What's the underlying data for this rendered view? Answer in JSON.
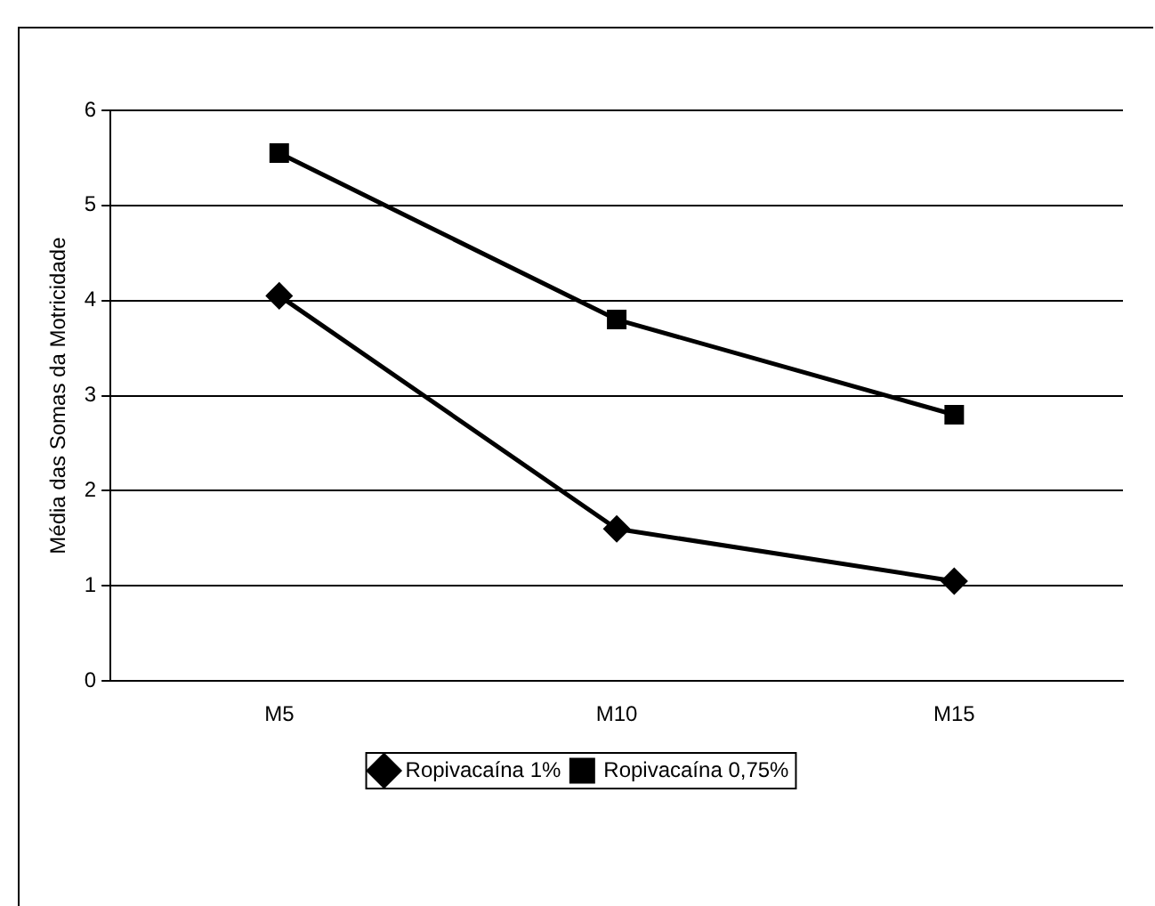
{
  "chart_data": {
    "type": "line",
    "ylabel": "Média das Somas da Motricidade",
    "categories": [
      "M5",
      "M10",
      "M15"
    ],
    "series": [
      {
        "name": "Ropivacaína 1%",
        "color": "#000000",
        "marker": "diamond",
        "values": [
          4.05,
          1.6,
          1.05
        ]
      },
      {
        "name": "Ropivacaína 0,75%",
        "color": "#000000",
        "marker": "square",
        "values": [
          5.55,
          3.8,
          2.8
        ]
      }
    ],
    "ylim": [
      0,
      6
    ],
    "yticks": [
      0,
      1,
      2,
      3,
      4,
      5,
      6
    ],
    "grid": "y",
    "legend": "bottom",
    "line_style": "solid"
  }
}
